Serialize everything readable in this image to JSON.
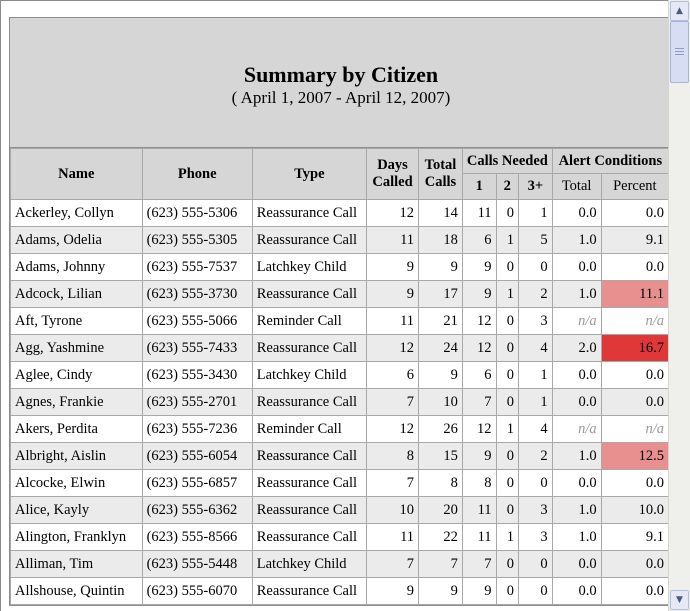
{
  "report": {
    "title": "Summary by Citizen",
    "subtitle": "( April 1, 2007 - April 12, 2007)"
  },
  "columns": {
    "name": "Name",
    "phone": "Phone",
    "type": "Type",
    "days_called": "Days Called",
    "total_calls": "Total Calls",
    "calls_needed": "Calls Needed",
    "calls_needed_sub": [
      "1",
      "2",
      "3+"
    ],
    "alert_conditions": "Alert Conditions",
    "alert_sub": [
      "Total",
      "Percent"
    ]
  },
  "colors": {
    "header_bg": "#d6d6d6",
    "alt_row_bg": "#ebebeb",
    "percent_mid": "#e88f8f",
    "percent_high": "#e03838"
  },
  "rows": [
    {
      "name": "Ackerley, Collyn",
      "phone": "(623) 555-5306",
      "type": "Reassurance Call",
      "days": "12",
      "total": "14",
      "c1": "11",
      "c2": "0",
      "c3": "1",
      "alert_total": "0.0",
      "alert_pct": "0.0",
      "level": "none"
    },
    {
      "name": "Adams, Odelia",
      "phone": "(623) 555-5305",
      "type": "Reassurance Call",
      "days": "11",
      "total": "18",
      "c1": "6",
      "c2": "1",
      "c3": "5",
      "alert_total": "1.0",
      "alert_pct": "9.1",
      "level": "none"
    },
    {
      "name": "Adams, Johnny",
      "phone": "(623) 555-7537",
      "type": "Latchkey Child",
      "days": "9",
      "total": "9",
      "c1": "9",
      "c2": "0",
      "c3": "0",
      "alert_total": "0.0",
      "alert_pct": "0.0",
      "level": "none"
    },
    {
      "name": "Adcock, Lilian",
      "phone": "(623) 555-3730",
      "type": "Reassurance Call",
      "days": "9",
      "total": "17",
      "c1": "9",
      "c2": "1",
      "c3": "2",
      "alert_total": "1.0",
      "alert_pct": "11.1",
      "level": "mid"
    },
    {
      "name": "Aft, Tyrone",
      "phone": "(623) 555-5066",
      "type": "Reminder Call",
      "days": "11",
      "total": "21",
      "c1": "12",
      "c2": "0",
      "c3": "3",
      "alert_total": "n/a",
      "alert_pct": "n/a",
      "level": "na"
    },
    {
      "name": "Agg, Yashmine",
      "phone": "(623) 555-7433",
      "type": "Reassurance Call",
      "days": "12",
      "total": "24",
      "c1": "12",
      "c2": "0",
      "c3": "4",
      "alert_total": "2.0",
      "alert_pct": "16.7",
      "level": "high"
    },
    {
      "name": "Aglee, Cindy",
      "phone": "(623) 555-3430",
      "type": "Latchkey Child",
      "days": "6",
      "total": "9",
      "c1": "6",
      "c2": "0",
      "c3": "1",
      "alert_total": "0.0",
      "alert_pct": "0.0",
      "level": "none"
    },
    {
      "name": "Agnes, Frankie",
      "phone": "(623) 555-2701",
      "type": "Reassurance Call",
      "days": "7",
      "total": "10",
      "c1": "7",
      "c2": "0",
      "c3": "1",
      "alert_total": "0.0",
      "alert_pct": "0.0",
      "level": "none"
    },
    {
      "name": "Akers, Perdita",
      "phone": "(623) 555-7236",
      "type": "Reminder Call",
      "days": "12",
      "total": "26",
      "c1": "12",
      "c2": "1",
      "c3": "4",
      "alert_total": "n/a",
      "alert_pct": "n/a",
      "level": "na"
    },
    {
      "name": "Albright, Aislin",
      "phone": "(623) 555-6054",
      "type": "Reassurance Call",
      "days": "8",
      "total": "15",
      "c1": "9",
      "c2": "0",
      "c3": "2",
      "alert_total": "1.0",
      "alert_pct": "12.5",
      "level": "mid"
    },
    {
      "name": "Alcocke, Elwin",
      "phone": "(623) 555-6857",
      "type": "Reassurance Call",
      "days": "7",
      "total": "8",
      "c1": "8",
      "c2": "0",
      "c3": "0",
      "alert_total": "0.0",
      "alert_pct": "0.0",
      "level": "none"
    },
    {
      "name": "Alice, Kayly",
      "phone": "(623) 555-6362",
      "type": "Reassurance Call",
      "days": "10",
      "total": "20",
      "c1": "11",
      "c2": "0",
      "c3": "3",
      "alert_total": "1.0",
      "alert_pct": "10.0",
      "level": "none"
    },
    {
      "name": "Alington, Franklyn",
      "phone": "(623) 555-8566",
      "type": "Reassurance Call",
      "days": "11",
      "total": "22",
      "c1": "11",
      "c2": "1",
      "c3": "3",
      "alert_total": "1.0",
      "alert_pct": "9.1",
      "level": "none"
    },
    {
      "name": "Alliman, Tim",
      "phone": "(623) 555-5448",
      "type": "Latchkey Child",
      "days": "7",
      "total": "7",
      "c1": "7",
      "c2": "0",
      "c3": "0",
      "alert_total": "0.0",
      "alert_pct": "0.0",
      "level": "none"
    },
    {
      "name": "Allshouse, Quintin",
      "phone": "(623) 555-6070",
      "type": "Reassurance Call",
      "days": "9",
      "total": "9",
      "c1": "9",
      "c2": "0",
      "c3": "0",
      "alert_total": "0.0",
      "alert_pct": "0.0",
      "level": "none"
    }
  ],
  "scrollbar": {
    "up_icon": "triangle-up-icon",
    "down_icon": "triangle-down-icon"
  }
}
